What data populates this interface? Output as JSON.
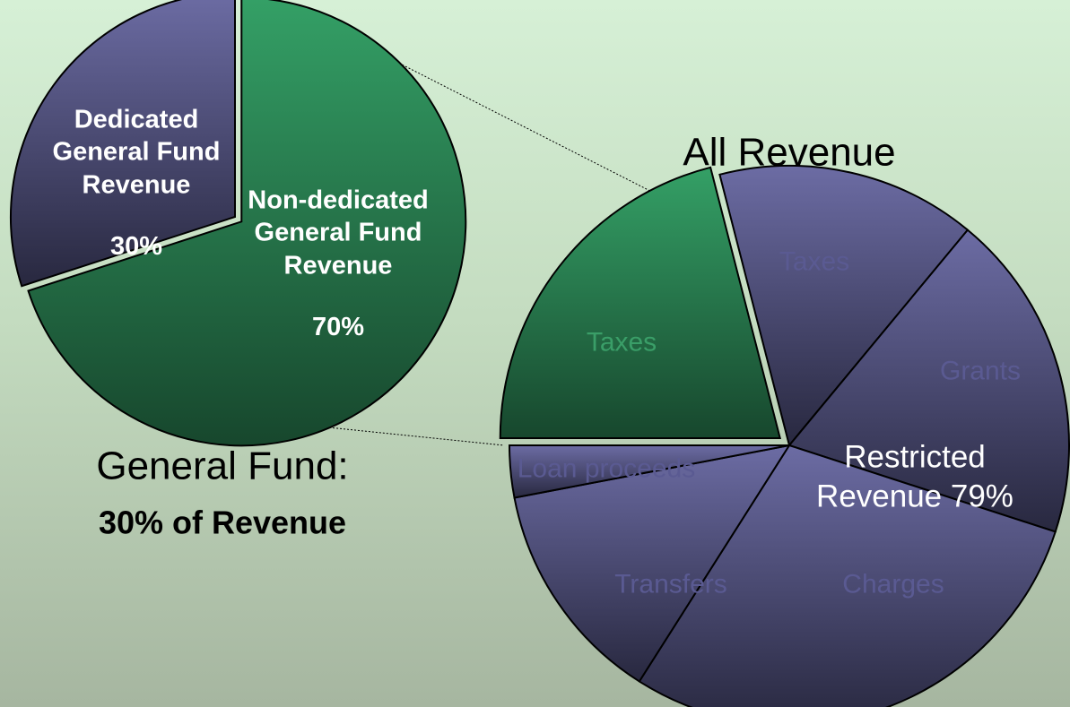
{
  "chart_data": [
    {
      "type": "pie",
      "title": "General Fund:",
      "subtitle": "30% of Revenue",
      "categories": [
        "Non-dedicated General Fund Revenue",
        "Dedicated General Fund Revenue"
      ],
      "values": [
        70,
        30
      ],
      "value_labels": [
        "70%",
        "30%"
      ],
      "colors": [
        "green",
        "purple"
      ]
    },
    {
      "type": "pie",
      "title": "All Revenue",
      "annotation": "Restricted Revenue 79%",
      "categories": [
        "Taxes",
        "Taxes",
        "Grants",
        "Charges",
        "Transfers",
        "Loan proceeds"
      ],
      "values": [
        21,
        15,
        19,
        29,
        13,
        3
      ],
      "colors": [
        "green",
        "purple",
        "purple",
        "purple",
        "purple",
        "purple"
      ]
    }
  ]
}
